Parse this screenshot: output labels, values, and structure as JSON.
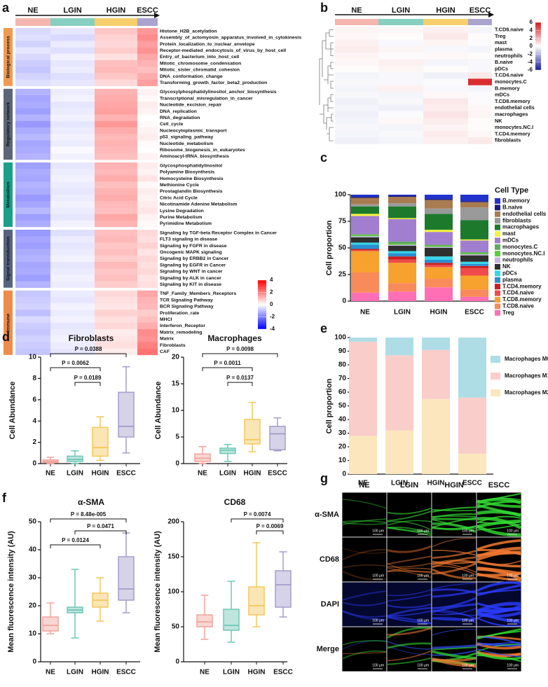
{
  "chart_data": [
    {
      "type": "heatmap",
      "panel": "a",
      "categories": [
        "NE",
        "LGIN",
        "HGIN",
        "ESCC"
      ],
      "category_colors": [
        "#f4b6ae",
        "#86cfc1",
        "#f7cf6c",
        "#aaa3cf"
      ],
      "zlim": [
        -4,
        4
      ],
      "zticks": [
        4,
        2,
        0,
        -2,
        -4
      ],
      "colors": [
        "#0000ff",
        "#ffffff",
        "#ff0000"
      ],
      "row_groups": [
        {
          "name": "Biological process",
          "color": "#e8742a",
          "bar_color": "#f09a52",
          "rows": [
            "Histone_H2B_acetylation",
            "Assembly_of_actomyosin_apparatus_involved_in_cytokinesis",
            "Protein_localization_to_nuclear_envelope",
            "Receptor-mediated_endocytosis_of_virus_by_host_cell",
            "Entry_of_bacterium_into_host_cell",
            "Mitotic_chromosome_condensation",
            "Mitotic_sister_chromatid_cohesion",
            "DNA_conformation_change",
            "Transforming_growth_factor_beta2_production"
          ],
          "values": [
            [
              -0.6,
              -0.4,
              0.9,
              1.6
            ],
            [
              -0.5,
              -0.6,
              0.7,
              1.8
            ],
            [
              -0.7,
              -0.3,
              0.6,
              1.5
            ],
            [
              -0.4,
              -0.5,
              0.8,
              1.7
            ],
            [
              -0.6,
              -0.2,
              0.5,
              1.4
            ],
            [
              -0.8,
              -0.4,
              1.0,
              1.2
            ],
            [
              -0.9,
              -0.3,
              1.1,
              1.0
            ],
            [
              -0.7,
              -0.5,
              0.9,
              1.3
            ],
            [
              -0.5,
              -0.4,
              0.6,
              1.5
            ]
          ]
        },
        {
          "name": "Regulatory network",
          "color": "#4b5e96",
          "bar_color": "#5b6678",
          "rows": [
            "Glycosylphosphatidylinositol_anchor_biosynthesis",
            "Transcriptional_misregulation_in_cancer",
            "Nucleotide_excision_repair",
            "DNA_replication",
            "RNA_degradation",
            "Cell_cycle",
            "Nucleocytoplasmic_transport",
            "p53_signaling_pathway",
            "Nucleotide_metabolism",
            "Ribosome_biogenesis_in_eukaryotes",
            "Aminoacyl-tRNA_biosynthesis"
          ],
          "values": [
            [
              -1.2,
              -0.3,
              1.2,
              0.2
            ],
            [
              -1.4,
              -0.2,
              1.3,
              0.1
            ],
            [
              -1.3,
              -0.4,
              1.4,
              0.3
            ],
            [
              -1.5,
              -0.3,
              1.5,
              0.2
            ],
            [
              -1.2,
              -0.2,
              1.2,
              0.0
            ],
            [
              -1.6,
              -0.4,
              1.6,
              0.1
            ],
            [
              -1.3,
              -0.3,
              1.3,
              0.2
            ],
            [
              -1.1,
              -0.2,
              1.1,
              0.3
            ],
            [
              -1.4,
              -0.3,
              1.2,
              0.1
            ],
            [
              -1.3,
              -0.1,
              1.1,
              0.0
            ],
            [
              -1.2,
              -0.2,
              1.0,
              0.2
            ]
          ]
        },
        {
          "name": "Metabolism",
          "color": "#119a74",
          "bar_color": "#1aa08a",
          "rows": [
            "Glycosphosphatidylinositol",
            "Polyamine Biosynthesis",
            "Homocysteine Biosynthesis",
            "Methionine Cycle",
            "Prostaglandin Biosynthesis",
            "Citric Acid Cycle",
            "Nicotinamide Adenine Metabolism",
            "Lysine Degradation",
            "Purine Metabolism",
            "Pyrimidine Metabolism"
          ],
          "values": [
            [
              -1.5,
              -0.4,
              1.2,
              0.3
            ],
            [
              -1.3,
              -0.3,
              1.1,
              0.2
            ],
            [
              -1.4,
              -0.2,
              1.3,
              0.4
            ],
            [
              -1.2,
              -0.3,
              1.0,
              0.1
            ],
            [
              -1.3,
              -0.4,
              1.2,
              0.3
            ],
            [
              -1.6,
              -0.3,
              1.3,
              0.2
            ],
            [
              -1.4,
              -0.2,
              1.1,
              0.3
            ],
            [
              -1.1,
              -0.3,
              1.0,
              0.4
            ],
            [
              -1.5,
              -0.4,
              1.4,
              0.2
            ],
            [
              -1.3,
              -0.2,
              1.2,
              0.1
            ]
          ]
        },
        {
          "name": "Signal transduction",
          "color": "#36b0c8",
          "bar_color": "#55657e",
          "rows": [
            "Signaling by TGF-beta Receptor Complex in Cancer",
            "FLT3 signaling in disease",
            "Signaling by FGFR in disease",
            "Oncogenic MAPK signaling",
            "Signaling by ERBB2 in Cancer",
            "Signaling by EGFR in Cancer",
            "Signaling by WNT in cancer",
            "Signaling by ALK in cancer",
            "Signaling by KIT in disease"
          ],
          "values": [
            [
              -1.6,
              -0.5,
              1.0,
              0.6
            ],
            [
              -1.4,
              -0.3,
              1.1,
              0.5
            ],
            [
              -1.5,
              -0.4,
              0.9,
              0.7
            ],
            [
              -1.3,
              -0.3,
              1.0,
              0.4
            ],
            [
              -1.2,
              -0.2,
              0.8,
              0.6
            ],
            [
              -1.4,
              -0.4,
              1.1,
              0.5
            ],
            [
              -1.3,
              -0.3,
              0.9,
              0.6
            ],
            [
              -1.5,
              -0.2,
              1.0,
              0.4
            ],
            [
              -1.2,
              -0.3,
              0.8,
              0.5
            ]
          ]
        },
        {
          "name": "Immune",
          "color": "#e0402c",
          "bar_color": "#ee8c4a",
          "rows": [
            "TNF_Family_Members_Receptors",
            "TCR Signaling Pathway",
            "BCR Signaling Pathway",
            "Proliferation_rate",
            "MHCI",
            "Interferon_Receptor",
            "Matrix_remodeling",
            "Matrix",
            "Fibroblasts",
            "CAF"
          ],
          "values": [
            [
              -0.9,
              -0.3,
              0.6,
              1.4
            ],
            [
              -0.8,
              -0.4,
              0.5,
              1.2
            ],
            [
              -0.7,
              -0.2,
              0.4,
              1.1
            ],
            [
              -1.0,
              -0.3,
              0.7,
              0.8
            ],
            [
              -0.6,
              -0.2,
              0.5,
              1.0
            ],
            [
              -0.8,
              -0.4,
              0.6,
              1.3
            ],
            [
              -0.9,
              -0.3,
              0.3,
              1.8
            ],
            [
              -0.7,
              -0.2,
              0.4,
              1.7
            ],
            [
              -0.8,
              -0.3,
              0.5,
              2.0
            ],
            [
              -0.9,
              -0.4,
              0.3,
              2.2
            ]
          ]
        }
      ]
    },
    {
      "type": "heatmap",
      "panel": "b",
      "categories": [
        "NE",
        "LGIN",
        "HGIN",
        "ESCC"
      ],
      "category_colors": [
        "#f4b6ae",
        "#86cfc1",
        "#f7cf6c",
        "#aaa3cf"
      ],
      "zlim": [
        -6,
        6
      ],
      "zticks": [
        6,
        4,
        2,
        0,
        -2,
        -4,
        -6
      ],
      "colors": [
        "#1a1aa6",
        "#ffffff",
        "#d7191c"
      ],
      "rows": [
        "T.CD8.naive",
        "Treg",
        "mast",
        "plasma",
        "neutrophils",
        "B.naive",
        "pDCs",
        "T.CD4.naive",
        "monocytes.C",
        "B.memory",
        "mDCs",
        "T.CD8.memory",
        "endothelial cells",
        "macrophages",
        "NK",
        "monocytes.NC.I",
        "T.CD4.memory",
        "fibroblasts"
      ],
      "values": [
        [
          0.3,
          0.2,
          0.4,
          -0.3
        ],
        [
          0.2,
          0.1,
          0.6,
          0.1
        ],
        [
          0.4,
          -0.2,
          0.3,
          -0.1
        ],
        [
          0.5,
          0.3,
          -0.2,
          -0.3
        ],
        [
          0.3,
          -0.1,
          0.2,
          0.1
        ],
        [
          0.2,
          0.4,
          -0.3,
          -0.2
        ],
        [
          0.1,
          0.3,
          0.1,
          -0.2
        ],
        [
          -0.3,
          -0.2,
          -0.4,
          0.6
        ],
        [
          -0.2,
          -0.2,
          -0.1,
          5.5
        ],
        [
          -0.3,
          0.4,
          -0.2,
          -0.3
        ],
        [
          -0.2,
          -0.3,
          0.2,
          -0.1
        ],
        [
          -0.4,
          -0.2,
          0.6,
          -0.1
        ],
        [
          -0.3,
          -0.4,
          0.5,
          0.2
        ],
        [
          -0.4,
          -0.1,
          0.7,
          0.3
        ],
        [
          -0.3,
          0.2,
          0.5,
          0.1
        ],
        [
          -0.2,
          -0.3,
          0.3,
          0.1
        ],
        [
          -0.3,
          -0.2,
          0.5,
          0.2
        ],
        [
          -0.4,
          -0.3,
          0.4,
          0.6
        ]
      ]
    },
    {
      "type": "stacked_bar",
      "panel": "c",
      "ylabel": "Cell proportion",
      "legend_title": "Cell Type",
      "categories": [
        "NE",
        "LGIN",
        "HGIN",
        "ESCC"
      ],
      "ylim": [
        0,
        100
      ],
      "yticks": [
        0,
        25,
        50,
        75,
        100
      ],
      "series": [
        {
          "name": "B.memory",
          "color": "#2233cc",
          "values": [
            2,
            1,
            4,
            6
          ]
        },
        {
          "name": "B.naive",
          "color": "#1a1a7a",
          "values": [
            1,
            1,
            1,
            1
          ]
        },
        {
          "name": "endothelial cells",
          "color": "#a87c50",
          "values": [
            6,
            6,
            8,
            5
          ]
        },
        {
          "name": "fibroblasts",
          "color": "#999999",
          "values": [
            2,
            3,
            5,
            12
          ]
        },
        {
          "name": "macrophages",
          "color": "#1d7a2c",
          "values": [
            7,
            11,
            15,
            18
          ]
        },
        {
          "name": "mast",
          "color": "#f5f53a",
          "values": [
            2,
            1,
            2,
            1
          ]
        },
        {
          "name": "mDCs",
          "color": "#a27ed0",
          "values": [
            17,
            21,
            12,
            11
          ]
        },
        {
          "name": "monocytes.C",
          "color": "#5faa60",
          "values": [
            1,
            2,
            1,
            1
          ]
        },
        {
          "name": "monocytes.NC.I",
          "color": "#5ccc3a",
          "values": [
            1,
            1,
            1,
            1
          ]
        },
        {
          "name": "neutrophils",
          "color": "#c9b3e3",
          "values": [
            1,
            1,
            1,
            1
          ]
        },
        {
          "name": "NK",
          "color": "#2f2f2f",
          "values": [
            5,
            5,
            8,
            6
          ]
        },
        {
          "name": "pDCs",
          "color": "#34d6e6",
          "values": [
            2,
            2,
            3,
            2
          ]
        },
        {
          "name": "plasma",
          "color": "#2b8fd1",
          "values": [
            4,
            3,
            3,
            2
          ]
        },
        {
          "name": "T.CD4.memory",
          "color": "#c81e1e",
          "values": [
            1,
            3,
            2,
            2
          ]
        },
        {
          "name": "T.CD4.naive",
          "color": "#ef4b4b",
          "values": [
            1,
            3,
            2,
            7
          ]
        },
        {
          "name": "T.CD8.memory",
          "color": "#f7a12e",
          "values": [
            20,
            19,
            11,
            13
          ]
        },
        {
          "name": "T.CD8.naive",
          "color": "#f98a5a",
          "values": [
            19,
            8,
            8,
            7
          ]
        },
        {
          "name": "Treg",
          "color": "#ff6fb5",
          "values": [
            8,
            9,
            13,
            4
          ]
        }
      ]
    },
    {
      "type": "box",
      "panel": "d",
      "title": "Fibroblasts",
      "ylabel": "Cell Abundance",
      "categories": [
        "NE",
        "LGIN",
        "HGIN",
        "ESCC"
      ],
      "colors": [
        "#f2a49b",
        "#6fc7b5",
        "#f5c75b",
        "#a59dcb"
      ],
      "min": [
        0,
        0,
        0.3,
        1
      ],
      "q1": [
        0.1,
        0.2,
        0.7,
        2.5
      ],
      "median": [
        0.2,
        0.4,
        1.5,
        3.5
      ],
      "q3": [
        0.35,
        0.7,
        3.4,
        6.7
      ],
      "max": [
        0.6,
        1.2,
        4.4,
        9.1
      ],
      "ylim": [
        0,
        10
      ],
      "yticks": [
        0,
        2,
        4,
        6,
        8,
        10
      ],
      "annotations": [
        "P = 0.0388",
        "P = 0.0062",
        "P = 0.0189"
      ]
    },
    {
      "type": "box",
      "title": "Macrophages",
      "ylabel": "Cell Abundance",
      "categories": [
        "NE",
        "LGIN",
        "HGIN",
        "ESCC"
      ],
      "colors": [
        "#f2a49b",
        "#6fc7b5",
        "#f5c75b",
        "#a59dcb"
      ],
      "min": [
        0,
        0.4,
        2.2,
        2.4
      ],
      "q1": [
        0.4,
        1.9,
        3.7,
        2.6
      ],
      "median": [
        1,
        2.5,
        4.5,
        5.6
      ],
      "q3": [
        1.8,
        2.9,
        8.3,
        7
      ],
      "max": [
        3.2,
        3.6,
        11.5,
        8.6
      ],
      "ylim": [
        0,
        20
      ],
      "yticks": [
        0,
        5,
        10,
        15,
        20
      ],
      "annotations": [
        "P = 0.0098",
        "P = 0.0011",
        "P = 0.0137"
      ]
    },
    {
      "type": "stacked_bar",
      "panel": "e",
      "ylabel": "Cell proportion",
      "categories": [
        "NE",
        "LGIN",
        "HGIN",
        "ESCC"
      ],
      "ylim": [
        0,
        100
      ],
      "yticks": [
        0,
        10,
        20,
        30,
        40,
        50,
        60,
        70,
        80,
        90,
        100
      ],
      "series": [
        {
          "name": "Macrophages M0",
          "color": "#aedde6",
          "values": [
            3,
            13,
            9,
            44
          ]
        },
        {
          "name": "Macrophages M1",
          "color": "#f9cdca",
          "values": [
            69,
            55,
            36,
            41
          ]
        },
        {
          "name": "Macrophages M2",
          "color": "#fbe6bd",
          "values": [
            28,
            32,
            55,
            15
          ]
        }
      ]
    },
    {
      "type": "box",
      "panel": "f",
      "title": "α-SMA",
      "ylabel": "Mean fluorescence intensity (AU)",
      "categories": [
        "NE",
        "LGIN",
        "HGIN",
        "ESCC"
      ],
      "colors": [
        "#f2a49b",
        "#6fc7b5",
        "#f5c75b",
        "#a59dcb"
      ],
      "min": [
        10,
        8.5,
        14.5,
        17.5
      ],
      "q1": [
        11,
        17.5,
        19.5,
        22
      ],
      "median": [
        13,
        18.5,
        22,
        26
      ],
      "q3": [
        16,
        19.5,
        24.5,
        37.5
      ],
      "max": [
        21,
        33,
        30,
        46
      ],
      "ylim": [
        0,
        50
      ],
      "yticks": [
        0,
        10,
        20,
        30,
        40,
        50
      ],
      "annotations": [
        "P = 8.48e-005",
        "P = 0.0471",
        "P = 0.0124"
      ]
    },
    {
      "type": "box",
      "title": "CD68",
      "ylabel": "Mean fluorescence intensity (AU)",
      "categories": [
        "NE",
        "LGIN",
        "HGIN",
        "ESCC"
      ],
      "colors": [
        "#f2a49b",
        "#6fc7b5",
        "#f5c75b",
        "#a59dcb"
      ],
      "min": [
        32,
        28,
        50,
        64
      ],
      "q1": [
        50,
        45,
        67,
        78
      ],
      "median": [
        57,
        52,
        80,
        110
      ],
      "q3": [
        67,
        75,
        107,
        130
      ],
      "max": [
        95,
        115,
        170,
        157
      ],
      "ylim": [
        0,
        200
      ],
      "yticks": [
        0,
        50,
        100,
        150,
        200
      ],
      "annotations": [
        "P = 0.0074",
        "P = 0.0069"
      ]
    },
    {
      "type": "image_grid",
      "panel": "g",
      "columns": [
        "NE",
        "LGIN",
        "HGIN",
        "ESCC"
      ],
      "rows": [
        "α-SMA",
        "CD68",
        "DAPI",
        "Merge"
      ],
      "row_colors": [
        "#22cc22",
        "#f07c3c",
        "#1e3cff",
        "#22cc22"
      ],
      "scale_bar": "100 μm"
    }
  ]
}
